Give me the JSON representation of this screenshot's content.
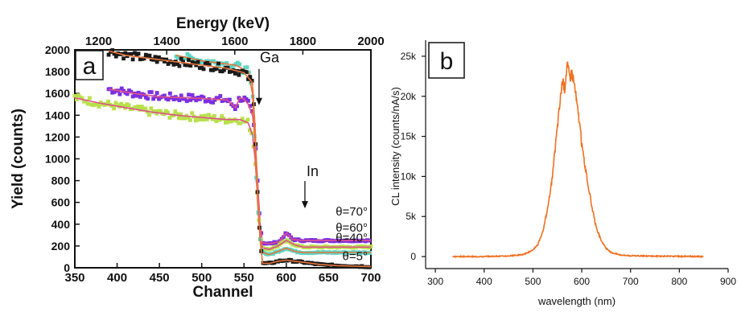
{
  "chart_data": [
    {
      "panel_label": "a",
      "type": "scatter",
      "xlabel": "Channel",
      "ylabel": "Yield (counts)",
      "top_xlabel": "Energy (keV)",
      "xlim": [
        350,
        700
      ],
      "ylim": [
        0,
        2000
      ],
      "top_xlim": [
        1130,
        2000
      ],
      "xticks": [
        350,
        400,
        450,
        500,
        550,
        600,
        650,
        700
      ],
      "yticks": [
        0,
        200,
        400,
        600,
        800,
        1000,
        1200,
        1400,
        1600,
        1800,
        2000
      ],
      "top_xticks": [
        1200,
        1400,
        1600,
        1800,
        2000
      ],
      "annotations": [
        {
          "text": "Ga",
          "x": 563,
          "y": 1810
        },
        {
          "text": "In",
          "x": 622,
          "y": 870
        }
      ],
      "series": [
        {
          "name": "θ=70°",
          "color": "#7b2fe0",
          "fit_color": "#e0508a",
          "points": [
            [
              390,
              1640
            ],
            [
              420,
              1600
            ],
            [
              450,
              1570
            ],
            [
              480,
              1560
            ],
            [
              510,
              1550
            ],
            [
              530,
              1540
            ],
            [
              540,
              1470
            ],
            [
              545,
              1560
            ],
            [
              550,
              1550
            ],
            [
              555,
              1500
            ],
            [
              560,
              1400
            ],
            [
              563,
              1200
            ],
            [
              566,
              800
            ],
            [
              569,
              400
            ],
            [
              572,
              230
            ],
            [
              580,
              220
            ],
            [
              592,
              240
            ],
            [
              600,
              320
            ],
            [
              608,
              260
            ],
            [
              620,
              250
            ],
            [
              650,
              250
            ],
            [
              700,
              250
            ]
          ]
        },
        {
          "name": "θ=60°",
          "color": "#b8e04a",
          "fit_color": "#e0508a",
          "points": [
            [
              350,
              1560
            ],
            [
              380,
              1510
            ],
            [
              410,
              1470
            ],
            [
              440,
              1430
            ],
            [
              470,
              1400
            ],
            [
              500,
              1380
            ],
            [
              530,
              1360
            ],
            [
              545,
              1360
            ],
            [
              555,
              1330
            ],
            [
              560,
              1220
            ],
            [
              563,
              1000
            ],
            [
              566,
              650
            ],
            [
              569,
              300
            ],
            [
              572,
              180
            ],
            [
              580,
              170
            ],
            [
              590,
              200
            ],
            [
              600,
              250
            ],
            [
              610,
              210
            ],
            [
              620,
              190
            ],
            [
              650,
              190
            ],
            [
              700,
              190
            ]
          ]
        },
        {
          "name": "θ=40°",
          "color": "#5cd6c6",
          "fit_color": "#e8743a",
          "points": [
            [
              470,
              1950
            ],
            [
              500,
              1900
            ],
            [
              520,
              1880
            ],
            [
              540,
              1860
            ],
            [
              555,
              1800
            ],
            [
              560,
              1600
            ],
            [
              563,
              1100
            ],
            [
              566,
              600
            ],
            [
              569,
              260
            ],
            [
              572,
              140
            ],
            [
              580,
              120
            ],
            [
              590,
              150
            ],
            [
              600,
              180
            ],
            [
              610,
              150
            ],
            [
              620,
              140
            ],
            [
              650,
              140
            ],
            [
              700,
              140
            ]
          ]
        },
        {
          "name": "θ=5°",
          "color": "#1a1a1a",
          "fit_color": "#e8743a",
          "points": [
            [
              390,
              1990
            ],
            [
              410,
              1950
            ],
            [
              440,
              1920
            ],
            [
              470,
              1890
            ],
            [
              500,
              1860
            ],
            [
              530,
              1830
            ],
            [
              550,
              1790
            ],
            [
              560,
              1700
            ],
            [
              563,
              1300
            ],
            [
              566,
              700
            ],
            [
              569,
              250
            ],
            [
              572,
              40
            ],
            [
              580,
              40
            ],
            [
              590,
              60
            ],
            [
              600,
              70
            ],
            [
              610,
              60
            ],
            [
              620,
              50
            ],
            [
              640,
              30
            ],
            [
              660,
              20
            ],
            [
              700,
              10
            ]
          ]
        }
      ],
      "legend_labels": [
        "θ=70°",
        "θ=60°",
        "θ=40°",
        "θ=5°"
      ]
    },
    {
      "panel_label": "b",
      "type": "line",
      "xlabel": "wavelength (nm)",
      "ylabel": "CL intensity (counts/nA/s)",
      "xlim": [
        280,
        900
      ],
      "ylim": [
        -1500,
        27000
      ],
      "xticks": [
        300,
        400,
        500,
        600,
        700,
        800,
        900
      ],
      "yticks": [
        0,
        5000,
        10000,
        15000,
        20000,
        25000
      ],
      "ytick_labels": [
        "0",
        "5k",
        "10k",
        "15k",
        "20k",
        "25k"
      ],
      "color": "#f07020",
      "x": [
        335,
        400,
        450,
        480,
        500,
        510,
        520,
        530,
        540,
        548,
        555,
        560,
        565,
        570,
        575,
        580,
        585,
        590,
        595,
        600,
        605,
        610,
        620,
        630,
        640,
        650,
        660,
        680,
        700,
        750,
        800,
        850
      ],
      "y": [
        0,
        0,
        80,
        250,
        800,
        1500,
        3000,
        6000,
        10000,
        15000,
        19000,
        22000,
        21000,
        24000,
        22500,
        23000,
        21500,
        19000,
        17000,
        14000,
        12000,
        10000,
        6500,
        3500,
        2000,
        1000,
        500,
        200,
        100,
        50,
        30,
        0
      ]
    }
  ]
}
